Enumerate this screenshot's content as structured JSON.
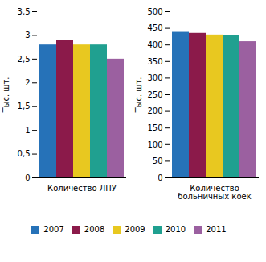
{
  "chart_data": [
    {
      "type": "bar",
      "categories": [
        "Количество ЛПУ"
      ],
      "ylabel": "Тыс. шт.",
      "series": [
        {
          "name": "2007",
          "color": "#2672B8",
          "values": [
            2.8
          ]
        },
        {
          "name": "2008",
          "color": "#8B1A4A",
          "values": [
            2.9
          ]
        },
        {
          "name": "2009",
          "color": "#E8C820",
          "values": [
            2.8
          ]
        },
        {
          "name": "2010",
          "color": "#20A090",
          "values": [
            2.8
          ]
        },
        {
          "name": "2011",
          "color": "#9B60A0",
          "values": [
            2.5
          ]
        }
      ],
      "ylim": [
        0,
        3.5
      ],
      "yticks": [
        0,
        {
          "value": 0.5,
          "label": "0,5"
        },
        1,
        {
          "value": 1.5,
          "label": "1,5"
        },
        2,
        {
          "value": 2.5,
          "label": "2,5"
        },
        3,
        {
          "value": 3.5,
          "label": "3,5"
        }
      ],
      "grid": false,
      "legend": "bottom"
    },
    {
      "type": "bar",
      "categories": [
        "Количество\nбольничных коек"
      ],
      "ylabel": "Тыс. шт.",
      "series": [
        {
          "name": "2007",
          "color": "#2672B8",
          "values": [
            438
          ]
        },
        {
          "name": "2008",
          "color": "#8B1A4A",
          "values": [
            435
          ]
        },
        {
          "name": "2009",
          "color": "#E8C820",
          "values": [
            430
          ]
        },
        {
          "name": "2010",
          "color": "#20A090",
          "values": [
            428
          ]
        },
        {
          "name": "2011",
          "color": "#9B60A0",
          "values": [
            410
          ]
        }
      ],
      "ylim": [
        0,
        500
      ],
      "yticks": [
        0,
        50,
        100,
        150,
        200,
        250,
        300,
        350,
        400,
        450,
        500
      ],
      "grid": false,
      "legend": "bottom"
    }
  ]
}
